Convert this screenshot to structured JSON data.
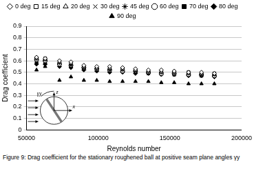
{
  "chart_data": {
    "type": "scatter",
    "caption": "Figure 9: Drag coefficient for the stationary roughened ball at positive seam plane angles γy",
    "x_label": "Reynolds number",
    "y_label": "Drag coefficient",
    "annotations": [
      "γy",
      "z",
      "x"
    ],
    "x": [
      57000,
      63000,
      73000,
      81000,
      90000,
      99000,
      108000,
      117000,
      126000,
      135000,
      144000,
      153000,
      163000,
      172000,
      181000
    ],
    "series": [
      {
        "name": "0 deg",
        "color": "#000000",
        "marker": "open_diamond",
        "values": [
          0.63,
          0.62,
          0.6,
          0.59,
          0.56,
          0.55,
          0.55,
          0.54,
          0.53,
          0.52,
          0.52,
          0.51,
          0.5,
          0.5,
          0.49
        ]
      },
      {
        "name": "15 deg",
        "color": "#000000",
        "marker": "open_square",
        "values": [
          0.62,
          0.62,
          0.59,
          0.58,
          0.55,
          0.54,
          0.54,
          0.53,
          0.52,
          0.51,
          0.51,
          0.5,
          0.5,
          0.49,
          0.49
        ]
      },
      {
        "name": "20 deg",
        "color": "#000000",
        "marker": "open_triangle",
        "values": [
          0.62,
          0.61,
          0.59,
          0.57,
          0.55,
          0.54,
          0.53,
          0.53,
          0.52,
          0.51,
          0.5,
          0.5,
          0.49,
          0.49,
          0.48
        ]
      },
      {
        "name": "30 deg",
        "color": "#000000",
        "marker": "x",
        "values": [
          0.62,
          0.61,
          0.58,
          0.57,
          0.54,
          0.54,
          0.53,
          0.52,
          0.51,
          0.51,
          0.5,
          0.5,
          0.49,
          0.48,
          0.48
        ]
      },
      {
        "name": "45 deg",
        "color": "#000000",
        "marker": "star",
        "values": [
          0.62,
          0.61,
          0.58,
          0.56,
          0.54,
          0.53,
          0.52,
          0.52,
          0.51,
          0.5,
          0.5,
          0.49,
          0.49,
          0.48,
          0.48
        ]
      },
      {
        "name": "60 deg",
        "color": "#000000",
        "marker": "open_circle",
        "values": [
          0.61,
          0.6,
          0.57,
          0.56,
          0.54,
          0.53,
          0.52,
          0.51,
          0.51,
          0.5,
          0.49,
          0.49,
          0.48,
          0.48,
          0.47
        ]
      },
      {
        "name": "70 deg",
        "color": "#000000",
        "marker": "filled_square",
        "values": [
          0.58,
          0.58,
          0.56,
          0.55,
          0.53,
          0.52,
          0.51,
          0.51,
          0.5,
          0.49,
          0.49,
          0.48,
          0.48,
          0.47,
          0.47
        ]
      },
      {
        "name": "80 deg",
        "color": "#000000",
        "marker": "filled_diamond",
        "values": [
          0.57,
          0.57,
          0.55,
          0.54,
          0.52,
          0.51,
          0.5,
          0.5,
          0.49,
          0.49,
          0.48,
          0.48,
          0.47,
          0.47,
          0.46
        ]
      },
      {
        "name": "90 deg",
        "color": "#000000",
        "marker": "filled_triangle",
        "values": [
          0.52,
          0.55,
          0.43,
          0.46,
          0.43,
          0.43,
          0.42,
          0.42,
          0.42,
          0.42,
          0.41,
          0.41,
          0.4,
          0.4,
          0.4
        ]
      }
    ],
    "xlim": [
      50000,
      200000
    ],
    "xticks": [
      50000,
      100000,
      150000,
      200000
    ],
    "ylim": [
      0,
      0.9
    ],
    "yticks": [
      0,
      0.1,
      0.2,
      0.3,
      0.4,
      0.5,
      0.6,
      0.7,
      0.8,
      0.9
    ],
    "grid": true,
    "legend": "top"
  }
}
